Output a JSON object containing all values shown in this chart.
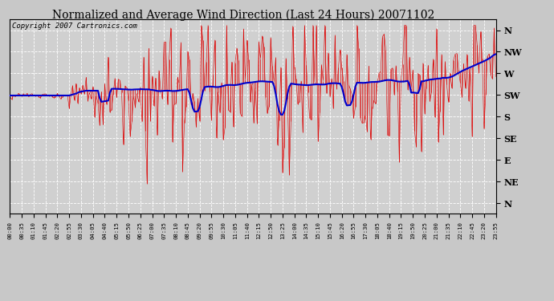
{
  "title": "Normalized and Average Wind Direction (Last 24 Hours) 20071102",
  "copyright": "Copyright 2007 Cartronics.com",
  "background_color": "#c8c8c8",
  "plot_bg_color": "#d0d0d0",
  "grid_color": "#ffffff",
  "ytick_labels": [
    "N",
    "NW",
    "W",
    "SW",
    "S",
    "SE",
    "E",
    "NE",
    "N"
  ],
  "ytick_values": [
    360,
    315,
    270,
    225,
    180,
    135,
    90,
    45,
    0
  ],
  "ymin": -22,
  "ymax": 382,
  "red_line_color": "#dd0000",
  "blue_line_color": "#0000cc",
  "title_fontsize": 10,
  "copyright_fontsize": 6.5,
  "red_lw": 0.5,
  "blue_lw": 1.5
}
